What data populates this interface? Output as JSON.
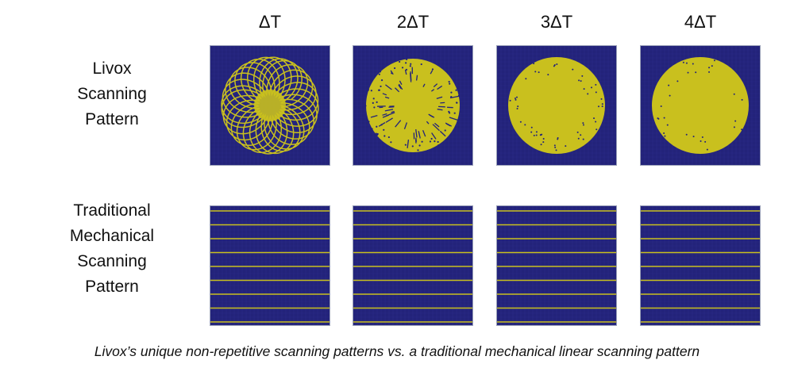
{
  "columns": [
    "ΔT",
    "2ΔT",
    "3ΔT",
    "4ΔT"
  ],
  "rows": [
    {
      "label_lines": [
        "Livox",
        "Scanning",
        "Pattern"
      ],
      "pattern": "non-repetitive"
    },
    {
      "label_lines": [
        "Traditional",
        "Mechanical",
        "Scanning",
        "Pattern"
      ],
      "pattern": "linear"
    }
  ],
  "caption": "Livox’s unique non-repetitive scanning patterns vs. a traditional mechanical linear scanning pattern",
  "colors": {
    "background": "#23237a",
    "scan": "#c9c01e",
    "grid": "#2e2e8c"
  }
}
